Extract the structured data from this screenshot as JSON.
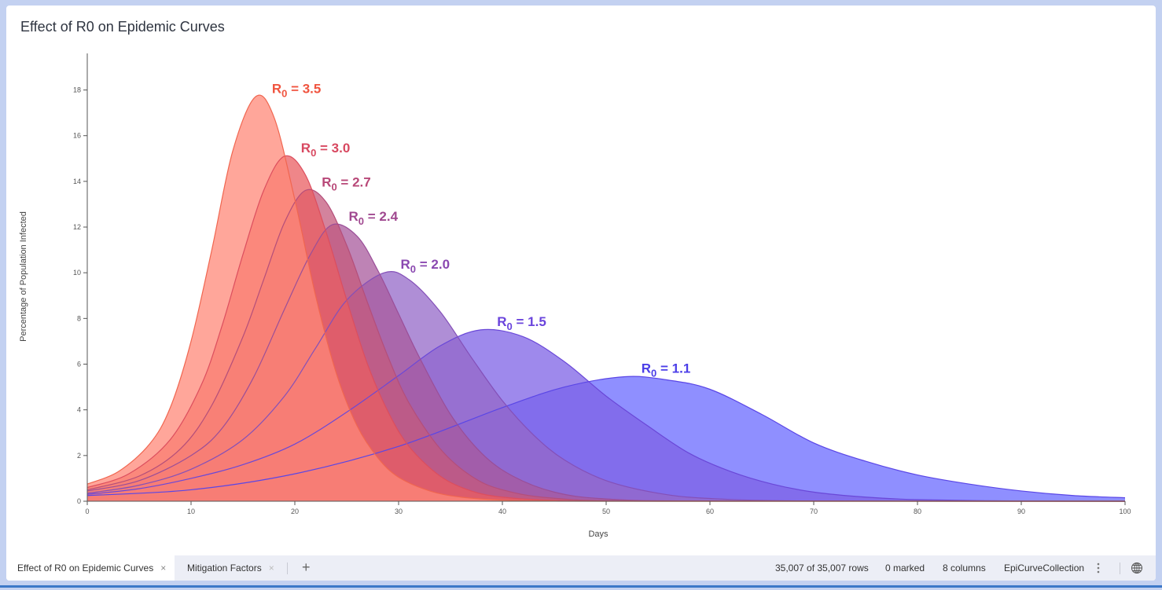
{
  "title": "Effect of R0 on Epidemic Curves",
  "chart_data": {
    "type": "area",
    "title": "Effect of R0 on Epidemic Curves",
    "xlabel": "Days",
    "ylabel": "Percentage of Population Infected",
    "xlim": [
      0,
      100
    ],
    "ylim": [
      0,
      19.6
    ],
    "xticks": [
      0,
      10,
      20,
      30,
      40,
      50,
      60,
      70,
      80,
      90,
      100
    ],
    "yticks": [
      0,
      2,
      4,
      6,
      8,
      10,
      12,
      14,
      16,
      18
    ],
    "grid": false,
    "series": [
      {
        "name": "1.1",
        "fill": "#6a6aff",
        "stroke": "#5a46e6",
        "label_color": "#4b3ee8",
        "points": [
          [
            0,
            0.25
          ],
          [
            10,
            0.5
          ],
          [
            20,
            1.2
          ],
          [
            30,
            2.4
          ],
          [
            40,
            4.1
          ],
          [
            46,
            5.0
          ],
          [
            51.8,
            5.45
          ],
          [
            56,
            5.3
          ],
          [
            60,
            4.9
          ],
          [
            65,
            3.8
          ],
          [
            70,
            2.55
          ],
          [
            75,
            1.75
          ],
          [
            80,
            1.15
          ],
          [
            85,
            0.75
          ],
          [
            90,
            0.45
          ],
          [
            95,
            0.25
          ],
          [
            100,
            0.15
          ]
        ]
      },
      {
        "name": "1.5",
        "fill": "#7d62e6",
        "stroke": "#6a48d8",
        "label_color": "#6a44dc",
        "points": [
          [
            0,
            0.3
          ],
          [
            5,
            0.55
          ],
          [
            10,
            1.0
          ],
          [
            15,
            1.6
          ],
          [
            20,
            2.5
          ],
          [
            25,
            3.9
          ],
          [
            30,
            5.5
          ],
          [
            34,
            6.8
          ],
          [
            37.9,
            7.5
          ],
          [
            42,
            7.2
          ],
          [
            46,
            6.1
          ],
          [
            50,
            4.6
          ],
          [
            54,
            3.3
          ],
          [
            58,
            2.1
          ],
          [
            62,
            1.3
          ],
          [
            66,
            0.75
          ],
          [
            70,
            0.4
          ],
          [
            75,
            0.18
          ],
          [
            80,
            0.07
          ],
          [
            90,
            0.01
          ],
          [
            100,
            0
          ]
        ]
      },
      {
        "name": "2.0",
        "fill": "#9468c8",
        "stroke": "#8450b8",
        "label_color": "#8a48b0",
        "points": [
          [
            0,
            0.35
          ],
          [
            5,
            0.7
          ],
          [
            10,
            1.4
          ],
          [
            15,
            2.7
          ],
          [
            19,
            4.6
          ],
          [
            22,
            6.7
          ],
          [
            25,
            8.8
          ],
          [
            28.6,
            10.0
          ],
          [
            31,
            9.7
          ],
          [
            34,
            8.3
          ],
          [
            37,
            6.3
          ],
          [
            40,
            4.4
          ],
          [
            43,
            2.9
          ],
          [
            46,
            1.8
          ],
          [
            50,
            0.9
          ],
          [
            55,
            0.35
          ],
          [
            60,
            0.12
          ],
          [
            70,
            0.01
          ],
          [
            100,
            0
          ]
        ]
      },
      {
        "name": "2.4",
        "fill": "#a85a9c",
        "stroke": "#9a4e98",
        "label_color": "#a04890",
        "points": [
          [
            0,
            0.45
          ],
          [
            5,
            0.9
          ],
          [
            10,
            2.0
          ],
          [
            13,
            3.2
          ],
          [
            16,
            5.4
          ],
          [
            19,
            8.4
          ],
          [
            21.5,
            10.8
          ],
          [
            23.6,
            12.1
          ],
          [
            26,
            11.6
          ],
          [
            28,
            10.1
          ],
          [
            30,
            8.2
          ],
          [
            32,
            6.3
          ],
          [
            35,
            3.8
          ],
          [
            38,
            2.1
          ],
          [
            41,
            1.1
          ],
          [
            45,
            0.4
          ],
          [
            50,
            0.1
          ],
          [
            60,
            0.01
          ],
          [
            100,
            0
          ]
        ]
      },
      {
        "name": "2.7",
        "fill": "#c45a7c",
        "stroke": "#b44e7a",
        "label_color": "#b84878",
        "points": [
          [
            0,
            0.5
          ],
          [
            5,
            1.1
          ],
          [
            9,
            2.3
          ],
          [
            12,
            4.2
          ],
          [
            15,
            7.2
          ],
          [
            17,
            9.7
          ],
          [
            19,
            12.2
          ],
          [
            21,
            13.6
          ],
          [
            23,
            13.1
          ],
          [
            25,
            11.2
          ],
          [
            27,
            8.7
          ],
          [
            29,
            6.3
          ],
          [
            31,
            4.3
          ],
          [
            34,
            2.3
          ],
          [
            37,
            1.1
          ],
          [
            40,
            0.5
          ],
          [
            45,
            0.13
          ],
          [
            55,
            0.01
          ],
          [
            100,
            0
          ]
        ]
      },
      {
        "name": "3.0",
        "fill": "#ea5e62",
        "stroke": "#dc4e5e",
        "label_color": "#d84860",
        "points": [
          [
            0,
            0.6
          ],
          [
            4,
            1.2
          ],
          [
            8,
            2.7
          ],
          [
            11,
            5.1
          ],
          [
            13,
            7.7
          ],
          [
            15,
            10.8
          ],
          [
            17,
            13.6
          ],
          [
            19,
            15.1
          ],
          [
            21,
            14.3
          ],
          [
            23,
            11.8
          ],
          [
            25,
            8.8
          ],
          [
            27,
            6.0
          ],
          [
            29,
            3.9
          ],
          [
            31,
            2.4
          ],
          [
            34,
            1.1
          ],
          [
            37,
            0.45
          ],
          [
            40,
            0.18
          ],
          [
            45,
            0.04
          ],
          [
            55,
            0
          ],
          [
            100,
            0
          ]
        ]
      },
      {
        "name": "3.5",
        "fill": "#ff8878",
        "stroke": "#f06650",
        "label_color": "#f0543f",
        "points": [
          [
            0,
            0.75
          ],
          [
            3,
            1.3
          ],
          [
            6,
            2.5
          ],
          [
            8,
            4.1
          ],
          [
            10,
            7.0
          ],
          [
            12,
            11.0
          ],
          [
            14,
            15.3
          ],
          [
            16.2,
            17.7
          ],
          [
            18,
            16.8
          ],
          [
            20,
            13.2
          ],
          [
            22,
            9.0
          ],
          [
            24,
            5.6
          ],
          [
            26,
            3.3
          ],
          [
            28,
            1.9
          ],
          [
            30,
            1.05
          ],
          [
            33,
            0.45
          ],
          [
            36,
            0.18
          ],
          [
            40,
            0.05
          ],
          [
            45,
            0.01
          ],
          [
            50,
            0
          ],
          [
            100,
            0
          ]
        ]
      }
    ],
    "label_prefix": "R",
    "label_subscript": "0",
    "label_equals": " = "
  },
  "tabs": [
    {
      "label": "Effect of R0 on Epidemic Curves",
      "close": "×"
    },
    {
      "label": "Mitigation Factors",
      "close": "×"
    }
  ],
  "add_tab": "+",
  "status": {
    "rows": "35,007 of 35,007 rows",
    "marked": "0 marked",
    "columns": "8 columns",
    "collection": "EpiCurveCollection",
    "menu_icon": "more-vertical-icon",
    "globe_icon": "globe-icon"
  }
}
